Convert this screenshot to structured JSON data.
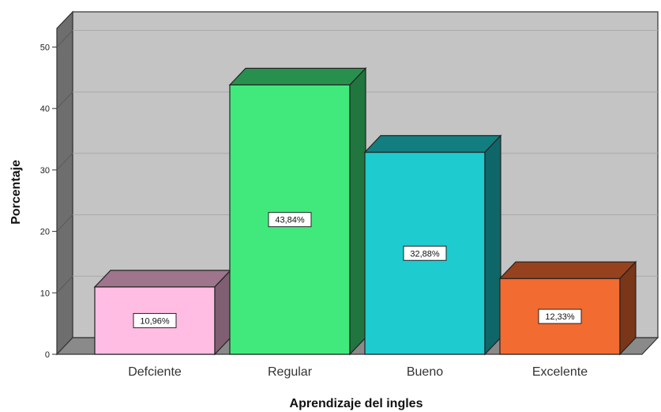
{
  "chart_data": {
    "type": "bar",
    "categories": [
      "Defciente",
      "Regular",
      "Bueno",
      "Excelente"
    ],
    "values": [
      10.96,
      43.84,
      32.88,
      12.33
    ],
    "data_labels": [
      "10,96%",
      "43,84%",
      "32,88%",
      "12,33%"
    ],
    "colors": [
      "#ffbde4",
      "#41e97d",
      "#1ecbcf",
      "#f26b30"
    ],
    "xlabel": "Aprendizaje del ingles",
    "ylabel": "Porcentaje",
    "yticks": [
      0,
      10,
      20,
      30,
      40,
      50
    ],
    "ylim": [
      0,
      52
    ],
    "grid": true,
    "style": "3d"
  }
}
